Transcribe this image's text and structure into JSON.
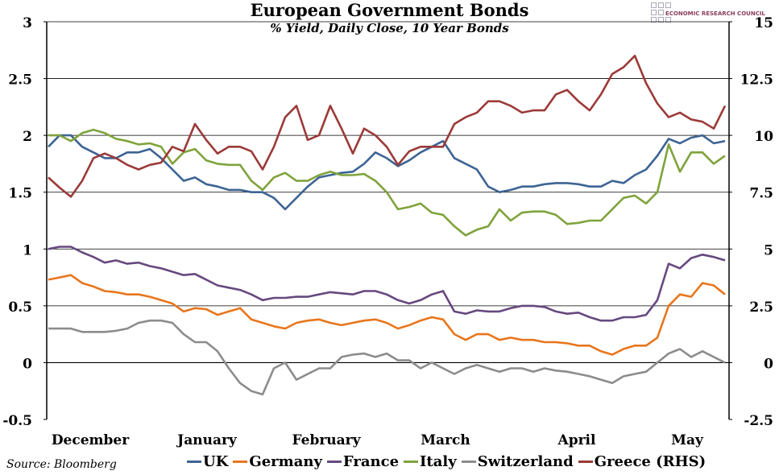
{
  "chart_data": {
    "type": "line",
    "title": "European Government Bonds",
    "subtitle": "% Yield, Daily Close, 10 Year Bonds",
    "source": "Source: Bloomberg",
    "logo_text": "ECONOMIC RESEARCH COUNCIL",
    "x_tick_labels": [
      "December",
      "January",
      "February",
      "March",
      "April",
      "May"
    ],
    "y_left": {
      "range": [
        -0.5,
        3
      ],
      "ticks": [
        "-0.5",
        "0",
        "0.5",
        "1",
        "1.5",
        "2",
        "2.5",
        "3"
      ]
    },
    "y_right": {
      "range": [
        -2.5,
        15
      ],
      "ticks": [
        "-2.5",
        "0",
        "2.5",
        "5",
        "7.5",
        "10",
        "12.5",
        "15"
      ]
    },
    "grid": true,
    "legend_position": "bottom",
    "series": [
      {
        "name": "UK",
        "axis": "left",
        "color": "#3d6494",
        "values": [
          1.9,
          2.0,
          2.0,
          1.9,
          1.85,
          1.8,
          1.8,
          1.85,
          1.85,
          1.88,
          1.8,
          1.7,
          1.6,
          1.63,
          1.57,
          1.55,
          1.52,
          1.52,
          1.5,
          1.5,
          1.45,
          1.35,
          1.45,
          1.55,
          1.63,
          1.65,
          1.67,
          1.68,
          1.75,
          1.85,
          1.8,
          1.73,
          1.78,
          1.85,
          1.9,
          1.95,
          1.8,
          1.75,
          1.7,
          1.55,
          1.5,
          1.52,
          1.55,
          1.55,
          1.57,
          1.58,
          1.58,
          1.57,
          1.55,
          1.55,
          1.6,
          1.58,
          1.65,
          1.7,
          1.82,
          1.97,
          1.93,
          1.98,
          2.0,
          1.93,
          1.95
        ]
      },
      {
        "name": "Germany",
        "axis": "left",
        "color": "#e8761c",
        "values": [
          0.73,
          0.75,
          0.77,
          0.7,
          0.67,
          0.63,
          0.62,
          0.6,
          0.6,
          0.58,
          0.55,
          0.52,
          0.45,
          0.48,
          0.47,
          0.42,
          0.45,
          0.48,
          0.38,
          0.35,
          0.32,
          0.3,
          0.35,
          0.37,
          0.38,
          0.35,
          0.33,
          0.35,
          0.37,
          0.38,
          0.35,
          0.3,
          0.33,
          0.37,
          0.4,
          0.38,
          0.25,
          0.2,
          0.25,
          0.25,
          0.2,
          0.22,
          0.2,
          0.2,
          0.18,
          0.18,
          0.17,
          0.15,
          0.15,
          0.1,
          0.07,
          0.12,
          0.15,
          0.15,
          0.22,
          0.5,
          0.6,
          0.58,
          0.7,
          0.68,
          0.6
        ]
      },
      {
        "name": "France",
        "axis": "left",
        "color": "#66497f",
        "values": [
          1.0,
          1.02,
          1.02,
          0.97,
          0.93,
          0.88,
          0.9,
          0.87,
          0.88,
          0.85,
          0.83,
          0.8,
          0.77,
          0.78,
          0.73,
          0.68,
          0.66,
          0.64,
          0.6,
          0.55,
          0.57,
          0.57,
          0.58,
          0.58,
          0.6,
          0.62,
          0.61,
          0.6,
          0.63,
          0.63,
          0.6,
          0.55,
          0.52,
          0.55,
          0.6,
          0.63,
          0.45,
          0.43,
          0.46,
          0.45,
          0.45,
          0.48,
          0.5,
          0.5,
          0.49,
          0.45,
          0.43,
          0.44,
          0.4,
          0.37,
          0.37,
          0.4,
          0.4,
          0.42,
          0.55,
          0.87,
          0.83,
          0.92,
          0.95,
          0.93,
          0.9
        ]
      },
      {
        "name": "Italy",
        "axis": "left",
        "color": "#7fa33c",
        "values": [
          2.0,
          2.0,
          1.95,
          2.02,
          2.05,
          2.02,
          1.97,
          1.95,
          1.92,
          1.93,
          1.9,
          1.75,
          1.85,
          1.88,
          1.78,
          1.75,
          1.74,
          1.74,
          1.6,
          1.52,
          1.63,
          1.67,
          1.6,
          1.6,
          1.65,
          1.68,
          1.65,
          1.65,
          1.66,
          1.6,
          1.5,
          1.35,
          1.37,
          1.4,
          1.32,
          1.3,
          1.2,
          1.12,
          1.17,
          1.2,
          1.35,
          1.25,
          1.32,
          1.33,
          1.33,
          1.3,
          1.22,
          1.23,
          1.25,
          1.25,
          1.35,
          1.45,
          1.47,
          1.4,
          1.5,
          1.92,
          1.68,
          1.85,
          1.85,
          1.75,
          1.82
        ]
      },
      {
        "name": "Switzerland",
        "axis": "left",
        "color": "#8c8c8c",
        "values": [
          0.3,
          0.3,
          0.3,
          0.27,
          0.27,
          0.27,
          0.28,
          0.3,
          0.35,
          0.37,
          0.37,
          0.35,
          0.25,
          0.18,
          0.18,
          0.1,
          -0.05,
          -0.18,
          -0.25,
          -0.28,
          -0.05,
          0.0,
          -0.15,
          -0.1,
          -0.05,
          -0.05,
          0.05,
          0.07,
          0.08,
          0.05,
          0.08,
          0.02,
          0.02,
          -0.05,
          0.0,
          -0.05,
          -0.1,
          -0.05,
          -0.02,
          -0.05,
          -0.08,
          -0.05,
          -0.05,
          -0.08,
          -0.05,
          -0.07,
          -0.08,
          -0.1,
          -0.12,
          -0.15,
          -0.18,
          -0.12,
          -0.1,
          -0.08,
          0.0,
          0.08,
          0.12,
          0.05,
          0.1,
          0.05,
          0.0
        ]
      },
      {
        "name": "Greece (RHS)",
        "axis": "right",
        "color": "#9b3a38",
        "values": [
          8.15,
          7.7,
          7.3,
          8.0,
          9.0,
          9.2,
          9.0,
          8.7,
          8.5,
          8.7,
          8.8,
          9.5,
          9.3,
          10.5,
          9.8,
          9.2,
          9.5,
          9.5,
          9.3,
          8.5,
          9.5,
          10.8,
          11.3,
          9.8,
          10.0,
          11.3,
          10.3,
          9.2,
          10.3,
          10.0,
          9.5,
          8.7,
          9.3,
          9.5,
          9.5,
          9.5,
          10.5,
          10.8,
          11.0,
          11.5,
          11.5,
          11.3,
          11.0,
          11.1,
          11.1,
          11.8,
          12.0,
          11.5,
          11.1,
          11.8,
          12.7,
          13.0,
          13.5,
          12.3,
          11.4,
          10.8,
          11.0,
          10.7,
          10.6,
          10.3,
          11.3
        ]
      }
    ]
  }
}
